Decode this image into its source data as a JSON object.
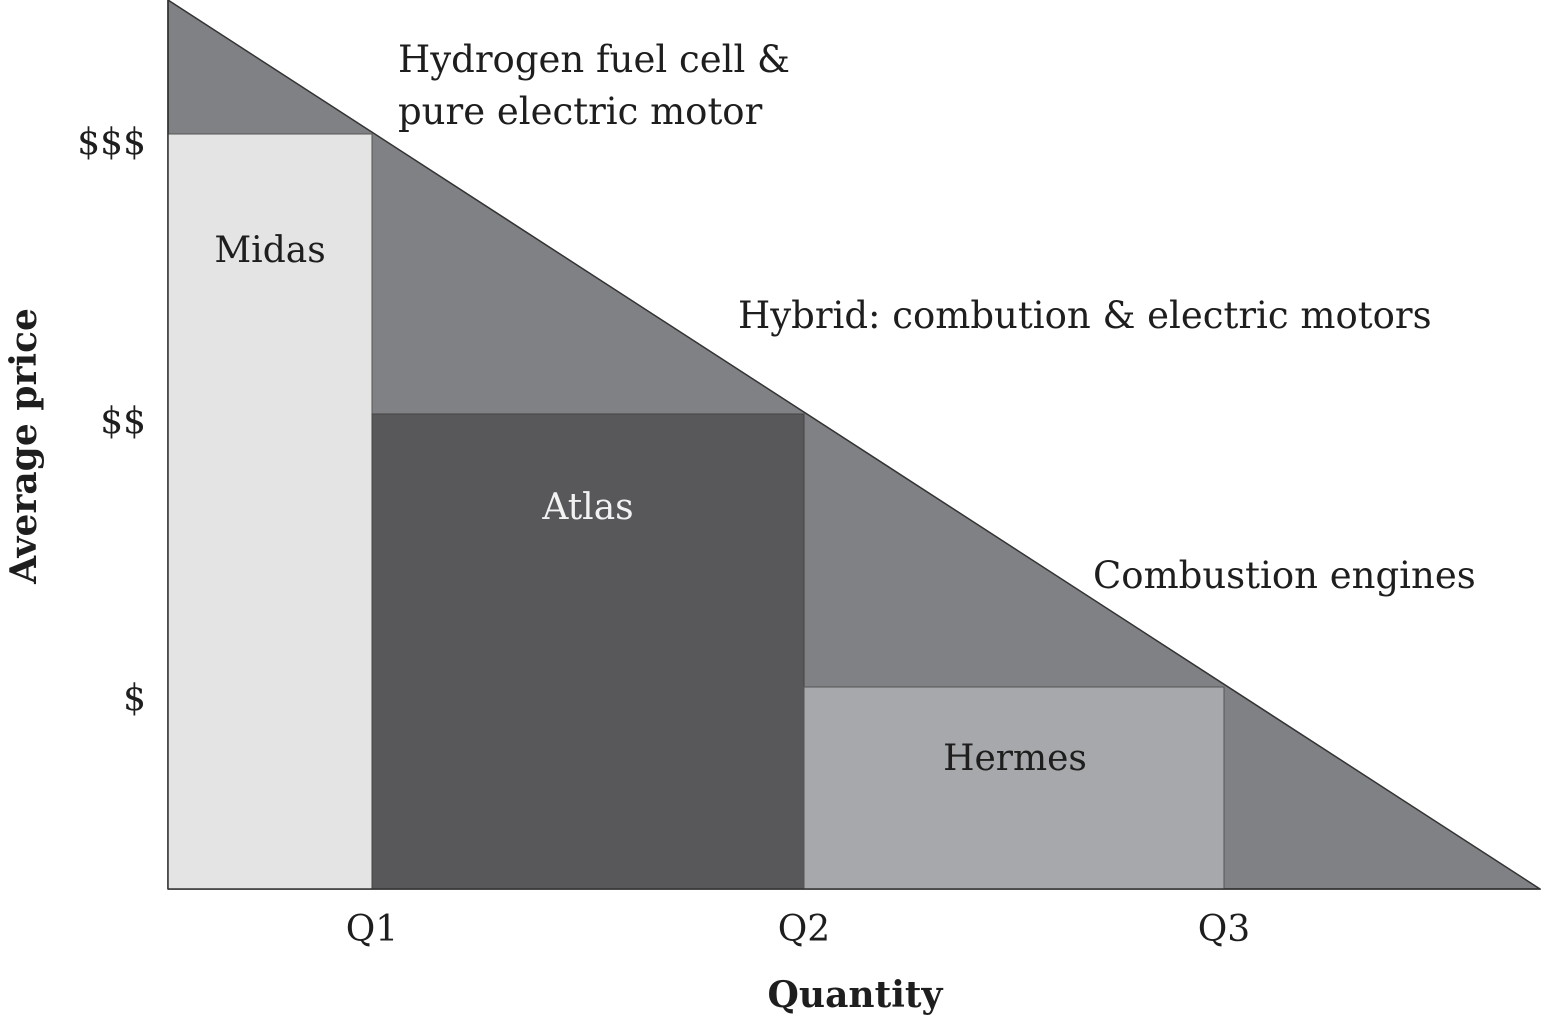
{
  "axes": {
    "ylabel": "Average price",
    "xlabel": "Quantity",
    "y_ticks": [
      "$$$",
      "$$",
      "$"
    ],
    "x_ticks": [
      "Q1",
      "Q2",
      "Q3"
    ]
  },
  "segments": [
    {
      "name": "Midas",
      "color": "#e4e4e4"
    },
    {
      "name": "Atlas",
      "color": "#58585b"
    },
    {
      "name": "Hermes",
      "color": "#a7a8ab"
    }
  ],
  "technology_bands": {
    "color": "#808184",
    "hydrogen": [
      "Hydrogen fuel cell &",
      "pure electric motor"
    ],
    "hybrid": "Hybrid:  combution & electric motors",
    "combustion": "Combustion engines"
  }
}
